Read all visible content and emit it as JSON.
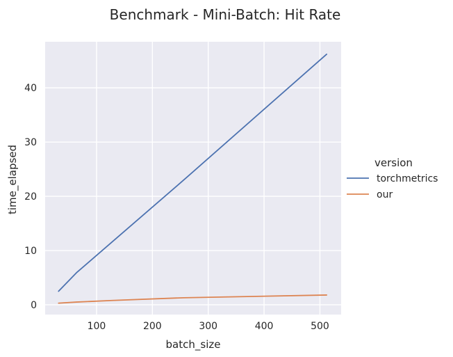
{
  "chart_data": {
    "type": "line",
    "title": "Benchmark - Mini-Batch: Hit Rate",
    "xlabel": "batch_size",
    "ylabel": "time_elapsed",
    "xlim": [
      8,
      538
    ],
    "ylim": [
      -1.8,
      48.5
    ],
    "xticks": [
      100,
      200,
      300,
      400,
      500
    ],
    "yticks": [
      0,
      10,
      20,
      30,
      40
    ],
    "grid": true,
    "legend": {
      "title": "version",
      "placement": "right"
    },
    "x": [
      32,
      64,
      128,
      256,
      512
    ],
    "series": [
      {
        "name": "torchmetrics",
        "color": "#4c72b0",
        "values": [
          2.5,
          5.9,
          11.6,
          23.0,
          46.2
        ]
      },
      {
        "name": "our",
        "color": "#dd8452",
        "values": [
          0.3,
          0.5,
          0.8,
          1.3,
          1.8
        ]
      }
    ],
    "colors": {
      "background": "#eaeaf2",
      "grid": "#ffffff",
      "text": "#262626"
    }
  }
}
